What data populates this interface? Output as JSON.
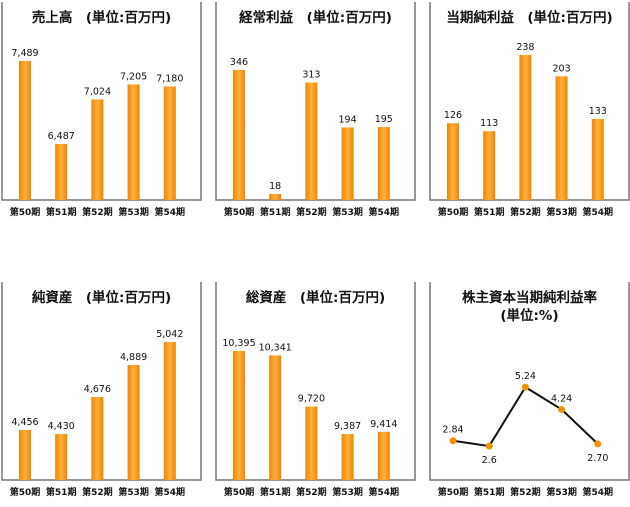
{
  "chart_data": [
    {
      "type": "bar",
      "title": "売上高　(単位:百万円)",
      "categories": [
        "第50期",
        "第51期",
        "第52期",
        "第53期",
        "第54期"
      ],
      "values": [
        7489,
        6487,
        7024,
        7205,
        7180
      ],
      "labels": [
        "7,489",
        "6,487",
        "7,024",
        "7,205",
        "7,180"
      ],
      "ylim": [
        5810,
        8200
      ]
    },
    {
      "type": "bar",
      "title": "経常利益　(単位:百万円)",
      "categories": [
        "第50期",
        "第51期",
        "第52期",
        "第53期",
        "第54期"
      ],
      "values": [
        346,
        18,
        313,
        194,
        195
      ],
      "labels": [
        "346",
        "18",
        "313",
        "194",
        "195"
      ],
      "ylim": [
        2,
        526
      ]
    },
    {
      "type": "bar",
      "title": "当期純利益　(単位:百万円)",
      "categories": [
        "第50期",
        "第51期",
        "第52期",
        "第53期",
        "第54期"
      ],
      "values": [
        126,
        113,
        238,
        203,
        133
      ],
      "labels": [
        "126",
        "113",
        "238",
        "203",
        "133"
      ],
      "ylim": [
        0,
        325
      ]
    },
    {
      "type": "bar",
      "title": "純資産　(単位:百万円)",
      "categories": [
        "第50期",
        "第51期",
        "第52期",
        "第53期",
        "第54期"
      ],
      "values": [
        4456,
        4430,
        4676,
        4889,
        5042
      ],
      "labels": [
        "4,456",
        "4,430",
        "4,676",
        "4,889",
        "5,042"
      ],
      "ylim": [
        4123,
        5442
      ]
    },
    {
      "type": "bar",
      "title": "総資産　(単位:百万円)",
      "categories": [
        "第50期",
        "第51期",
        "第52期",
        "第53期",
        "第54期"
      ],
      "values": [
        10395,
        10341,
        9720,
        9387,
        9414
      ],
      "labels": [
        "10,395",
        "10,341",
        "9,720",
        "9,387",
        "9,414"
      ],
      "ylim": [
        8828,
        11233
      ]
    },
    {
      "type": "line",
      "title": "株主資本当期純利益率",
      "subtitle": "(単位:%)",
      "categories": [
        "第50期",
        "第51期",
        "第52期",
        "第53期",
        "第54期"
      ],
      "values": [
        2.84,
        2.6,
        5.24,
        4.24,
        2.7
      ],
      "labels": [
        "2.84",
        "2.6",
        "5.24",
        "4.24",
        "2.70"
      ],
      "label_pos": [
        "above",
        "below",
        "above",
        "above",
        "below"
      ],
      "ylim": [
        1.08,
        9.95
      ]
    }
  ],
  "colors": {
    "bar": "#f08400",
    "bar_light": "#ffb040",
    "line": "#111111",
    "marker": "#f39200",
    "border": "#777777"
  }
}
